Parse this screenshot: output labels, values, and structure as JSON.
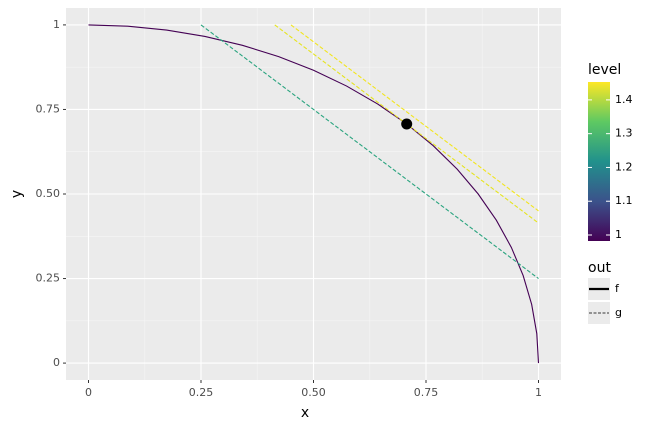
{
  "chart_data": {
    "type": "line",
    "x_label": "x",
    "y_label": "y",
    "xlim": [
      0,
      1
    ],
    "ylim": [
      0,
      1
    ],
    "xticks": [
      0,
      0.25,
      {
        "value": 0.5,
        "label": "0.50"
      },
      0.75,
      1
    ],
    "yticks": [
      0,
      0.25,
      {
        "value": 0.5,
        "label": "0.50"
      },
      0.75,
      1
    ],
    "grid": true,
    "series": [
      {
        "out": "f",
        "level": 1,
        "color": "#440154",
        "x": [
          0,
          0.0872,
          0.1736,
          0.2588,
          0.342,
          0.4226,
          0.5,
          0.5736,
          0.6428,
          0.7071,
          0.766,
          0.8192,
          0.866,
          0.9063,
          0.9397,
          0.9659,
          0.9848,
          0.9962,
          1
        ],
        "y": [
          1,
          0.9962,
          0.9848,
          0.9659,
          0.9397,
          0.9063,
          0.866,
          0.8192,
          0.766,
          0.7071,
          0.6428,
          0.5736,
          0.5,
          0.4226,
          0.342,
          0.2588,
          0.1736,
          0.0872,
          0
        ]
      },
      {
        "out": "g",
        "level": 1.25,
        "color": "#2aa47f",
        "x": [
          0.25,
          1
        ],
        "y": [
          1,
          0.25
        ]
      },
      {
        "out": "g",
        "level": 1.414,
        "color": "#e5e41f",
        "x": [
          0.414,
          1
        ],
        "y": [
          1,
          0.414
        ]
      },
      {
        "out": "g",
        "level": 1.45,
        "color": "#f2e51e",
        "x": [
          0.45,
          1
        ],
        "y": [
          1,
          0.45
        ]
      }
    ],
    "point": {
      "x": 0.7071,
      "y": 0.7071,
      "color": "#000000"
    },
    "color_legend": {
      "title": "level",
      "lim": [
        1,
        1.45
      ],
      "ticks": [
        1,
        1.1,
        1.2,
        1.3,
        1.4
      ],
      "palette": [
        "#440154",
        "#3b528b",
        "#21918c",
        "#5ec962",
        "#fde725"
      ]
    },
    "linetype_legend": {
      "title": "out",
      "entries": [
        {
          "label": "f",
          "dash": "solid"
        },
        {
          "label": "g",
          "dash": "dashed"
        }
      ]
    }
  }
}
